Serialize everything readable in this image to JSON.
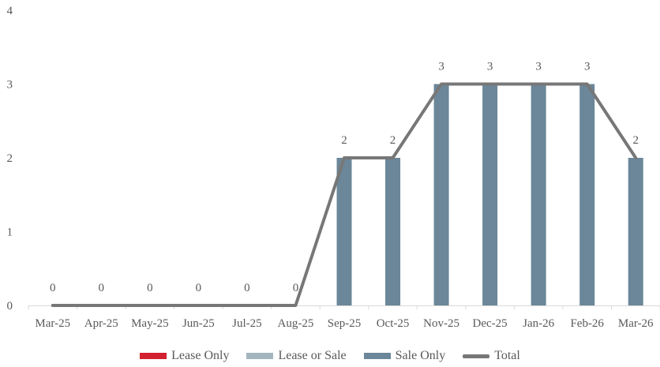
{
  "chart_data": {
    "type": "bar",
    "categories": [
      "Mar-25",
      "Apr-25",
      "May-25",
      "Jun-25",
      "Jul-25",
      "Aug-25",
      "Sep-25",
      "Oct-25",
      "Nov-25",
      "Dec-25",
      "Jan-26",
      "Feb-26",
      "Mar-26"
    ],
    "series": [
      {
        "name": "Lease Only",
        "kind": "bar",
        "color": "#d32030",
        "values": [
          0,
          0,
          0,
          0,
          0,
          0,
          0,
          0,
          0,
          0,
          0,
          0,
          0
        ]
      },
      {
        "name": "Lease or Sale",
        "kind": "bar",
        "color": "#a3b5bf",
        "values": [
          0,
          0,
          0,
          0,
          0,
          0,
          0,
          0,
          0,
          0,
          0,
          0,
          0
        ]
      },
      {
        "name": "Sale Only",
        "kind": "bar",
        "color": "#6b8799",
        "values": [
          0,
          0,
          0,
          0,
          0,
          0,
          2,
          2,
          3,
          3,
          3,
          3,
          2
        ]
      },
      {
        "name": "Total",
        "kind": "line",
        "color": "#777777",
        "values": [
          0,
          0,
          0,
          0,
          0,
          0,
          2,
          2,
          3,
          3,
          3,
          3,
          2
        ]
      }
    ],
    "data_labels": [
      0,
      0,
      0,
      0,
      0,
      0,
      2,
      2,
      3,
      3,
      3,
      3,
      2
    ],
    "y_ticks": [
      0,
      1,
      2,
      3,
      4
    ],
    "ylim": [
      0,
      4
    ],
    "grid": false,
    "legend_position": "bottom",
    "title": "",
    "xlabel": "",
    "ylabel": ""
  }
}
